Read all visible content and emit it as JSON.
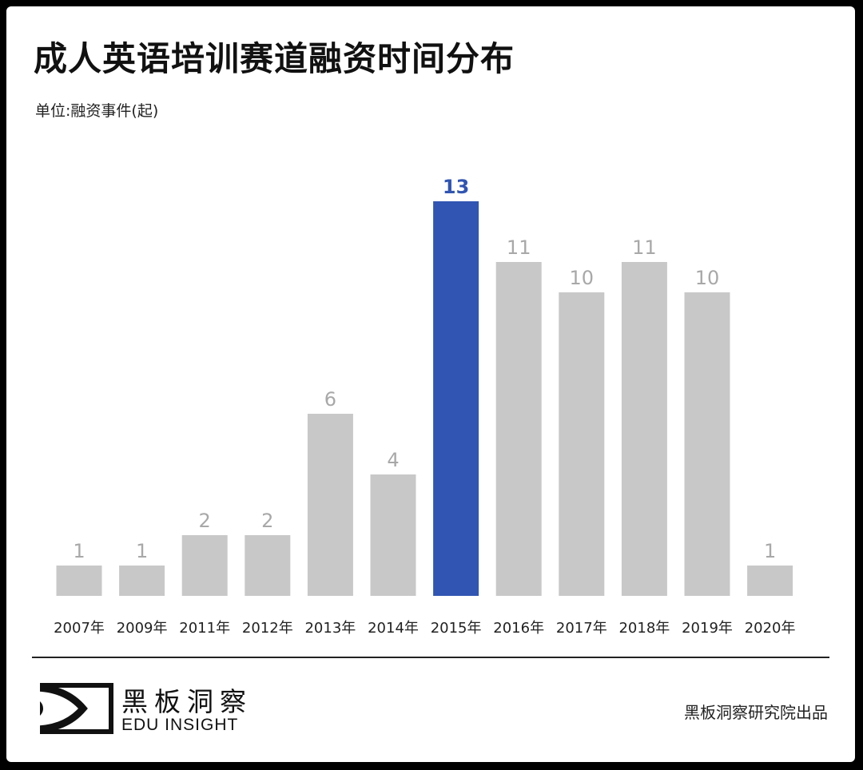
{
  "title": "成人英语培训赛道融资时间分布",
  "unit_label": "单位:融资事件(起)",
  "brand": {
    "cn": "黑板洞察",
    "en": "EDU INSIGHT"
  },
  "credit": "黑板洞察研究院出品",
  "chart_data": {
    "type": "bar",
    "title": "成人英语培训赛道融资时间分布",
    "ylabel": "单位:融资事件(起)",
    "categories": [
      "2007年",
      "2009年",
      "2011年",
      "2012年",
      "2013年",
      "2014年",
      "2015年",
      "2016年",
      "2017年",
      "2018年",
      "2019年",
      "2020年"
    ],
    "values": [
      1,
      1,
      2,
      2,
      6,
      4,
      13,
      11,
      10,
      11,
      10,
      1
    ],
    "highlight_index": 6,
    "colors": {
      "default": "#c8c8c8",
      "highlight": "#3055b2",
      "default_label": "#a8a8a8"
    },
    "ylim": [
      0,
      13
    ],
    "grid": false,
    "data_labels": true
  }
}
